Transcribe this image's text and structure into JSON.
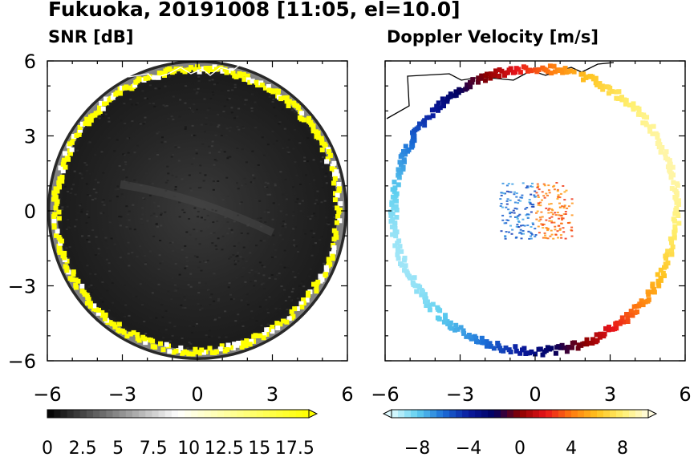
{
  "figure": {
    "title": "Fukuoka, 20191008 [11:05, el=10.0]"
  },
  "chart_data": [
    {
      "type": "heatmap",
      "title": "SNR [dB]",
      "xlabel": "",
      "ylabel": "",
      "xlim": [
        -6,
        6
      ],
      "ylim": [
        -6,
        6
      ],
      "x_ticks": [
        "-6",
        "-3",
        "0",
        "3",
        "6"
      ],
      "y_ticks": [
        "6",
        "3",
        "0",
        "-3",
        "-6"
      ],
      "grid": false,
      "field": "radar PPI, circular coverage, dark interior with bright (>17.5 dB) ring near edge",
      "colorbar": {
        "range": [
          0,
          18.5
        ],
        "extend": "max",
        "tick_labels": [
          "0",
          "2.5",
          "5",
          "7.5",
          "10",
          "12.5",
          "15",
          "17.5"
        ],
        "colors": [
          "#000000",
          "#ffffff",
          "#ffff00"
        ]
      }
    },
    {
      "type": "heatmap",
      "title": "Doppler Velocity [m/s]",
      "xlabel": "",
      "ylabel": "",
      "xlim": [
        -6,
        6
      ],
      "ylim": [
        -6,
        6
      ],
      "x_ticks": [
        "-6",
        "-3",
        "0",
        "3",
        "6"
      ],
      "y_ticks": [],
      "grid": false,
      "field": "radar PPI, velocity shown only on echo ring and near-center clutter",
      "colorbar": {
        "range": [
          -10,
          10
        ],
        "extend": "both",
        "tick_labels": [
          "-8",
          "-4",
          "0",
          "4",
          "8"
        ],
        "colors": [
          "#e0fbff",
          "#5fd0f0",
          "#1b6fd8",
          "#0a1a9e",
          "#000060",
          "#8a0000",
          "#e8141a",
          "#ff7a10",
          "#ffc21e",
          "#fff070",
          "#fffbe0"
        ]
      }
    }
  ]
}
